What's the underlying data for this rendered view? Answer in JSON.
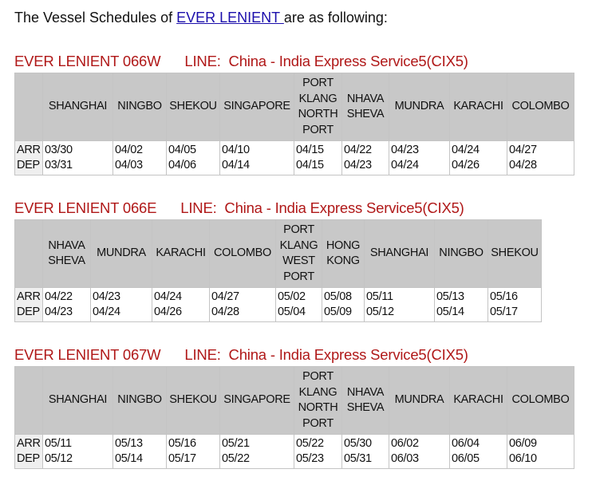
{
  "intro": {
    "prefix": "The Vessel Schedules of ",
    "vessel_link": "EVER LENIENT ",
    "suffix": "are as following:"
  },
  "row_labels": [
    "ARR",
    "DEP"
  ],
  "schedules": [
    {
      "voyage": "EVER LENIENT 066W",
      "line": "LINE:  China - India Express Service5(CIX5)",
      "ports": [
        "SHANGHAI",
        "NINGBO",
        "SHEKOU",
        "SINGAPORE",
        "PORT KLANG NORTH PORT",
        "NHAVA SHEVA",
        "MUNDRA",
        "KARACHI",
        "COLOMBO"
      ],
      "arr": [
        "03/30",
        "04/02",
        "04/05",
        "04/10",
        "04/15",
        "04/22",
        "04/23",
        "04/24",
        "04/27"
      ],
      "dep": [
        "03/31",
        "04/03",
        "04/06",
        "04/14",
        "04/15",
        "04/23",
        "04/24",
        "04/26",
        "04/28"
      ]
    },
    {
      "voyage": "EVER LENIENT 066E",
      "line": "LINE:  China - India Express Service5(CIX5)",
      "ports": [
        "NHAVA SHEVA",
        "MUNDRA",
        "KARACHI",
        "COLOMBO",
        "PORT KLANG WEST PORT",
        "HONG KONG",
        "SHANGHAI",
        "NINGBO",
        "SHEKOU"
      ],
      "arr": [
        "04/22",
        "04/23",
        "04/24",
        "04/27",
        "05/02",
        "05/08",
        "05/11",
        "05/13",
        "05/16"
      ],
      "dep": [
        "04/23",
        "04/24",
        "04/26",
        "04/28",
        "05/04",
        "05/09",
        "05/12",
        "05/14",
        "05/17"
      ]
    },
    {
      "voyage": "EVER LENIENT 067W",
      "line": "LINE:  China - India Express Service5(CIX5)",
      "ports": [
        "SHANGHAI",
        "NINGBO",
        "SHEKOU",
        "SINGAPORE",
        "PORT KLANG NORTH PORT",
        "NHAVA SHEVA",
        "MUNDRA",
        "KARACHI",
        "COLOMBO"
      ],
      "arr": [
        "05/11",
        "05/13",
        "05/16",
        "05/21",
        "05/22",
        "05/30",
        "06/02",
        "06/04",
        "06/09"
      ],
      "dep": [
        "05/12",
        "05/14",
        "05/17",
        "05/22",
        "05/23",
        "05/31",
        "06/03",
        "06/05",
        "06/10"
      ]
    }
  ],
  "colors": {
    "title": "#b01818",
    "header_bg": "#c8c8c8",
    "link": "#1a0dab"
  }
}
